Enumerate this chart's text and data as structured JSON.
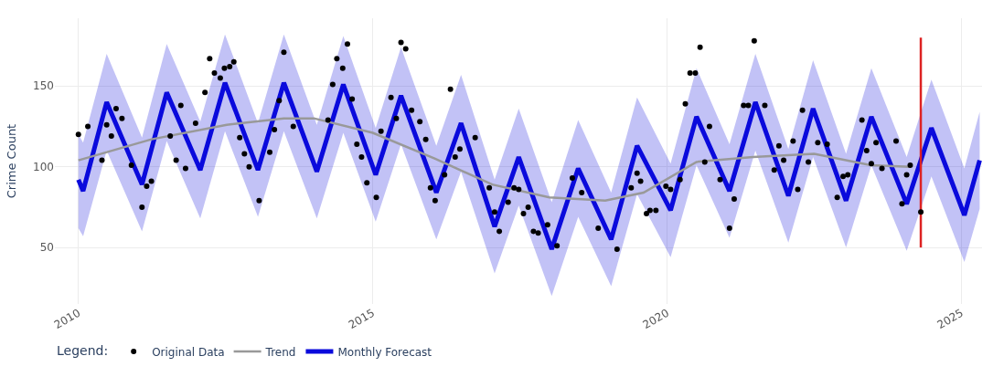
{
  "chart_data": {
    "type": "line",
    "ylabel": "Crime Count",
    "legend_title": "Legend:",
    "legend": "bottom",
    "grid": true,
    "xlim": [
      2009.6,
      2025.35
    ],
    "xticks": [
      2010,
      2015,
      2020,
      2025
    ],
    "ylim": [
      15,
      192
    ],
    "yticks": [
      50,
      100,
      150
    ],
    "series": [
      {
        "name": "Original Data",
        "type": "scatter",
        "marker": "circle",
        "color": "#000000",
        "x": [
          2010.0,
          2010.16,
          2010.4,
          2010.48,
          2010.56,
          2010.64,
          2010.74,
          2010.9,
          2011.08,
          2011.16,
          2011.24,
          2011.56,
          2011.66,
          2011.74,
          2011.82,
          2011.99,
          2012.15,
          2012.23,
          2012.31,
          2012.41,
          2012.48,
          2012.57,
          2012.64,
          2012.74,
          2012.82,
          2012.9,
          2013.07,
          2013.25,
          2013.33,
          2013.41,
          2013.49,
          2013.65,
          2014.24,
          2014.32,
          2014.39,
          2014.49,
          2014.57,
          2014.65,
          2014.73,
          2014.81,
          2014.9,
          2015.06,
          2015.14,
          2015.31,
          2015.4,
          2015.48,
          2015.56,
          2015.66,
          2015.8,
          2015.9,
          2015.98,
          2016.06,
          2016.22,
          2016.32,
          2016.4,
          2016.48,
          2016.74,
          2016.98,
          2017.07,
          2017.15,
          2017.3,
          2017.4,
          2017.48,
          2017.56,
          2017.64,
          2017.73,
          2017.81,
          2017.97,
          2018.13,
          2018.39,
          2018.55,
          2018.83,
          2019.15,
          2019.39,
          2019.49,
          2019.55,
          2019.65,
          2019.71,
          2019.81,
          2019.98,
          2020.06,
          2020.22,
          2020.31,
          2020.39,
          2020.48,
          2020.56,
          2020.64,
          2020.72,
          2020.9,
          2021.06,
          2021.14,
          2021.3,
          2021.38,
          2021.48,
          2021.66,
          2021.82,
          2021.9,
          2021.98,
          2022.14,
          2022.22,
          2022.3,
          2022.4,
          2022.56,
          2022.72,
          2022.89,
          2022.99,
          2023.07,
          2023.31,
          2023.39,
          2023.47,
          2023.55,
          2023.65,
          2023.89,
          2023.99,
          2024.07,
          2024.13,
          2024.31
        ],
        "values": [
          120,
          125,
          104,
          126,
          119,
          136,
          130,
          101,
          75,
          88,
          91,
          119,
          104,
          138,
          99,
          127,
          146,
          167,
          158,
          155,
          161,
          162,
          165,
          118,
          108,
          100,
          79,
          109,
          123,
          141,
          171,
          125,
          129,
          151,
          167,
          161,
          176,
          142,
          114,
          106,
          90,
          81,
          122,
          143,
          130,
          177,
          173,
          135,
          128,
          117,
          87,
          79,
          95,
          148,
          106,
          111,
          118,
          87,
          72,
          60,
          78,
          87,
          86,
          71,
          75,
          60,
          59,
          64,
          51,
          93,
          84,
          62,
          49,
          87,
          96,
          91,
          71,
          73,
          73,
          88,
          86,
          92,
          139,
          158,
          158,
          174,
          103,
          125,
          92,
          62,
          80,
          138,
          138,
          178,
          138,
          98,
          113,
          104,
          116,
          86,
          135,
          103,
          115,
          114,
          81,
          94,
          95,
          129,
          110,
          102,
          115,
          99,
          116,
          77,
          95,
          101,
          72
        ]
      },
      {
        "name": "Trend",
        "type": "line",
        "line_style": "solid",
        "color": "#999999",
        "x": [
          2010.0,
          2011.24,
          2012.52,
          2013.49,
          2014.0,
          2015.0,
          2016.06,
          2017.03,
          2018.0,
          2018.95,
          2019.6,
          2020.5,
          2021.46,
          2022.5,
          2023.46,
          2024.13
        ],
        "values": [
          104,
          117,
          126,
          130,
          130,
          121,
          105,
          89,
          81,
          79,
          84,
          103,
          106,
          108,
          101,
          100
        ]
      },
      {
        "name": "Monthly Forecast",
        "line_style": "solid",
        "color": "#0a0adc",
        "x": [
          2010.0,
          2010.08,
          2010.48,
          2011.08,
          2011.5,
          2012.07,
          2012.49,
          2013.05,
          2013.49,
          2014.05,
          2014.5,
          2015.05,
          2015.48,
          2016.08,
          2016.5,
          2017.07,
          2017.48,
          2018.04,
          2018.49,
          2019.05,
          2019.49,
          2020.06,
          2020.5,
          2021.06,
          2021.5,
          2022.06,
          2022.48,
          2023.04,
          2023.47,
          2024.07,
          2024.49,
          2025.05,
          2025.31
        ],
        "values": [
          92,
          85,
          140,
          89,
          146,
          98,
          152,
          98,
          152,
          97,
          151,
          95,
          144,
          84,
          127,
          63,
          106,
          49,
          99,
          55,
          113,
          73,
          131,
          85,
          140,
          82,
          136,
          79,
          131,
          77,
          124,
          70,
          104
        ],
        "lower": [
          62,
          57,
          110,
          60,
          116,
          68,
          122,
          69,
          122,
          68,
          121,
          66,
          114,
          55,
          97,
          34,
          76,
          20,
          69,
          26,
          83,
          44,
          101,
          56,
          110,
          53,
          106,
          50,
          101,
          48,
          94,
          41,
          74
        ],
        "upper": [
          120,
          115,
          170,
          118,
          176,
          128,
          182,
          127,
          182,
          126,
          181,
          124,
          174,
          113,
          157,
          92,
          136,
          78,
          129,
          84,
          143,
          102,
          161,
          114,
          170,
          111,
          166,
          108,
          161,
          106,
          154,
          99,
          134
        ]
      },
      {
        "type": "line",
        "line_style": "solid",
        "color": "#dd2222",
        "x": [
          2024.31,
          2024.31
        ],
        "values": [
          50,
          180
        ]
      }
    ]
  }
}
